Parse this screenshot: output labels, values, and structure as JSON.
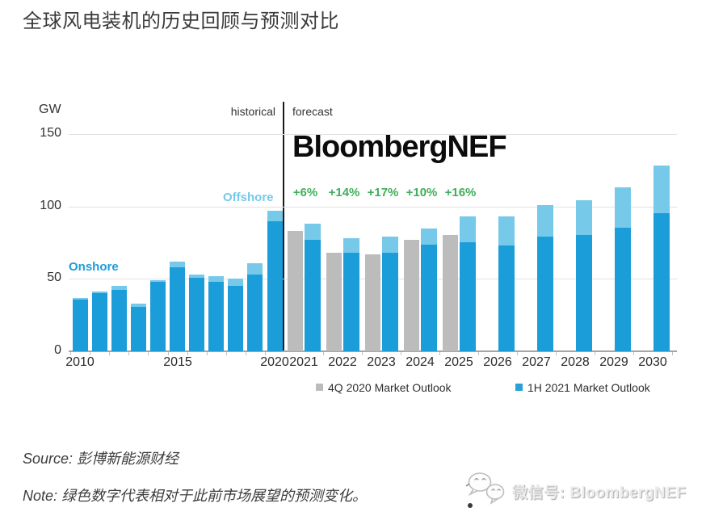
{
  "page": {
    "title": "全球风电装机的历史回顾与预测对比",
    "source": "Source: 彭博新能源财经",
    "note": "Note: 绿色数字代表相对于此前市场展望的预测变化。",
    "wechat": "微信号: BloombergNEF"
  },
  "icons": {
    "wechat": "dual-chat-bubbles"
  },
  "chart_data": {
    "type": "bar",
    "title": "全球风电装机的历史回顾与预测对比",
    "unit_label": "GW",
    "watermark": "BloombergNEF",
    "ylim": [
      0,
      150
    ],
    "yticks": [
      0,
      50,
      100,
      150
    ],
    "grid": "horizontal",
    "section_labels": {
      "historical": "historical",
      "forecast": "forecast"
    },
    "series_annotations": {
      "onshore": "Onshore",
      "offshore": "Offshore"
    },
    "xticks_historical_labels": [
      "2010",
      "2015",
      "2020"
    ],
    "colors": {
      "onshore_blue": "#1b9dd9",
      "offshore_light_blue": "#76c9e9",
      "outlook_gray": "#bcbcbc",
      "change_green": "#3fae5a"
    },
    "legend": [
      {
        "label": "4Q 2020 Market Outlook",
        "color": "#bcbcbc"
      },
      {
        "label": "1H 2021 Market Outlook",
        "color": "#29a0d8"
      }
    ],
    "historical": [
      {
        "year": "2010",
        "onshore": 36,
        "offshore": 1
      },
      {
        "year": "2011",
        "onshore": 40,
        "offshore": 1
      },
      {
        "year": "2012",
        "onshore": 42,
        "offshore": 3
      },
      {
        "year": "2013",
        "onshore": 31,
        "offshore": 2
      },
      {
        "year": "2014",
        "onshore": 48,
        "offshore": 1
      },
      {
        "year": "2015",
        "onshore": 58,
        "offshore": 4
      },
      {
        "year": "2016",
        "onshore": 51,
        "offshore": 2
      },
      {
        "year": "2017",
        "onshore": 48,
        "offshore": 4
      },
      {
        "year": "2018",
        "onshore": 45,
        "offshore": 5
      },
      {
        "year": "2019",
        "onshore": 53,
        "offshore": 8
      },
      {
        "year": "2020",
        "onshore": 90,
        "offshore": 7
      }
    ],
    "forecast": [
      {
        "year": "2021",
        "outlook_4q2020": 83,
        "onshore": 77,
        "offshore": 11,
        "change_vs_prior": "+6%"
      },
      {
        "year": "2022",
        "outlook_4q2020": 68,
        "onshore": 68,
        "offshore": 10,
        "change_vs_prior": "+14%"
      },
      {
        "year": "2023",
        "outlook_4q2020": 67,
        "onshore": 68,
        "offshore": 11,
        "change_vs_prior": "+17%"
      },
      {
        "year": "2024",
        "outlook_4q2020": 77,
        "onshore": 74,
        "offshore": 11,
        "change_vs_prior": "+10%"
      },
      {
        "year": "2025",
        "outlook_4q2020": 80,
        "onshore": 75,
        "offshore": 18,
        "change_vs_prior": "+16%"
      },
      {
        "year": "2026",
        "onshore": 73,
        "offshore": 20
      },
      {
        "year": "2027",
        "onshore": 79,
        "offshore": 22
      },
      {
        "year": "2028",
        "onshore": 80,
        "offshore": 24
      },
      {
        "year": "2029",
        "onshore": 85,
        "offshore": 28
      },
      {
        "year": "2030",
        "onshore": 95,
        "offshore": 33
      }
    ]
  }
}
